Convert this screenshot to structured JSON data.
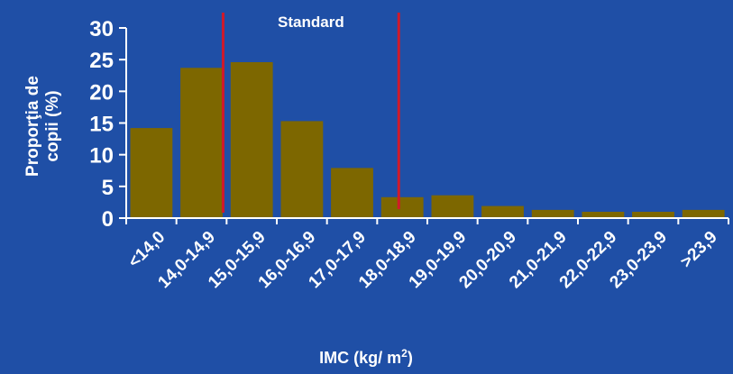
{
  "chart_data": {
    "type": "bar",
    "title": "",
    "xlabel": "IMC (kg/ m",
    "xlabel_sup": "2",
    "xlabel_close": ")",
    "ylabel_line1": "Proporţia de",
    "ylabel_line2": "copii (%)",
    "categories": [
      "<14,0",
      "14,0-14,9",
      "15,0-15,9",
      "16,0-16,9",
      "17,0-17,9",
      "18,0-18,9",
      "19,0-19,9",
      "20,0-20,9",
      "21,0-21,9",
      "22,0-22,9",
      "23,0-23,9",
      ">23,9"
    ],
    "values": [
      14.2,
      23.7,
      24.6,
      15.3,
      7.9,
      3.3,
      3.6,
      1.9,
      1.3,
      1.0,
      1.0,
      1.3
    ],
    "ylim": [
      0,
      30
    ],
    "yticks": [
      "0",
      "5",
      "10",
      "15",
      "20",
      "25",
      "30"
    ],
    "grid": false,
    "standard_label": "Standard",
    "standard_range": [
      15,
      18.5
    ],
    "colors": {
      "background": "#1f4fa6",
      "bar": "#7d6700",
      "axis": "#ffffff",
      "standard_line": "#d01a2a",
      "text": "#ffffff"
    }
  }
}
